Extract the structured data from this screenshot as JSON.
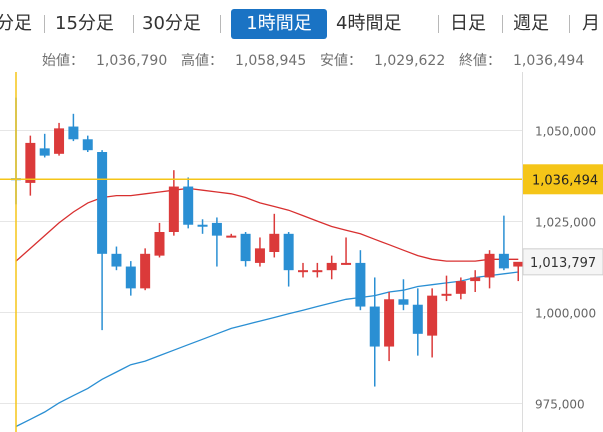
{
  "tabs": [
    {
      "label": "分足",
      "active": false
    },
    {
      "label": "15分足",
      "active": false
    },
    {
      "label": "30分足",
      "active": false
    },
    {
      "label": "1時間足",
      "active": true
    },
    {
      "label": "4時間足",
      "active": false
    },
    {
      "label": "日足",
      "active": false
    },
    {
      "label": "週足",
      "active": false
    },
    {
      "label": "月",
      "active": false
    }
  ],
  "ohlc": {
    "open_label": "始値：",
    "open": "1,036,790",
    "high_label": "高値：",
    "high": "1,058,945",
    "low_label": "安値：",
    "low": "1,029,622",
    "close_label": "終値：",
    "close": "1,036,494"
  },
  "colors": {
    "up": "#db3a3a",
    "down": "#2a8fd3",
    "ma_short": "#d83030",
    "ma_long": "#2a8fd3",
    "crosshair": "#f5c518",
    "tab_active": "#1a73c4",
    "last_price_bg": "#f5f5f5"
  },
  "chart_data": {
    "type": "candlestick",
    "ylim": [
      967000,
      1066000
    ],
    "yticks": [
      {
        "value": 975000,
        "label": "975,000"
      },
      {
        "value": 1000000,
        "label": "1,000,000"
      },
      {
        "value": 1025000,
        "label": "1,025,000"
      },
      {
        "value": 1050000,
        "label": "1,050,000"
      }
    ],
    "crosshair": {
      "value": 1036494,
      "label": "1,036,494",
      "candle_index": 0
    },
    "last_price": {
      "value": 1013797,
      "label": "1,013,797"
    },
    "candles": [
      {
        "o": 1036790,
        "h": 1058945,
        "l": 1029622,
        "c": 1036494
      },
      {
        "o": 1035500,
        "h": 1048500,
        "l": 1032000,
        "c": 1046500
      },
      {
        "o": 1045000,
        "h": 1049000,
        "l": 1042500,
        "c": 1043000
      },
      {
        "o": 1043500,
        "h": 1052000,
        "l": 1043000,
        "c": 1050500
      },
      {
        "o": 1051000,
        "h": 1054500,
        "l": 1047000,
        "c": 1047500
      },
      {
        "o": 1047500,
        "h": 1048500,
        "l": 1044000,
        "c": 1044500
      },
      {
        "o": 1044000,
        "h": 1044500,
        "l": 995000,
        "c": 1016000
      },
      {
        "o": 1016000,
        "h": 1018000,
        "l": 1011500,
        "c": 1012500
      },
      {
        "o": 1012500,
        "h": 1014000,
        "l": 1004500,
        "c": 1006500
      },
      {
        "o": 1006500,
        "h": 1017500,
        "l": 1006000,
        "c": 1016000
      },
      {
        "o": 1015500,
        "h": 1024500,
        "l": 1015000,
        "c": 1022000
      },
      {
        "o": 1022000,
        "h": 1039000,
        "l": 1021000,
        "c": 1034500
      },
      {
        "o": 1034500,
        "h": 1037000,
        "l": 1023000,
        "c": 1024000
      },
      {
        "o": 1024000,
        "h": 1025500,
        "l": 1021500,
        "c": 1023500
      },
      {
        "o": 1024500,
        "h": 1026000,
        "l": 1012500,
        "c": 1021000
      },
      {
        "o": 1021000,
        "h": 1021500,
        "l": 1020500,
        "c": 1021000
      },
      {
        "o": 1021500,
        "h": 1022000,
        "l": 1012500,
        "c": 1014000
      },
      {
        "o": 1013500,
        "h": 1020500,
        "l": 1012500,
        "c": 1017500
      },
      {
        "o": 1016500,
        "h": 1027000,
        "l": 1015000,
        "c": 1021500
      },
      {
        "o": 1021500,
        "h": 1022000,
        "l": 1007000,
        "c": 1011500
      },
      {
        "o": 1011500,
        "h": 1013500,
        "l": 1009500,
        "c": 1011500
      },
      {
        "o": 1011500,
        "h": 1013500,
        "l": 1009500,
        "c": 1011500
      },
      {
        "o": 1011500,
        "h": 1015500,
        "l": 1009000,
        "c": 1013500
      },
      {
        "o": 1013500,
        "h": 1020500,
        "l": 1013000,
        "c": 1013500
      },
      {
        "o": 1013500,
        "h": 1017000,
        "l": 1000500,
        "c": 1001500
      },
      {
        "o": 1001500,
        "h": 1009500,
        "l": 979500,
        "c": 990500
      },
      {
        "o": 990500,
        "h": 1005500,
        "l": 986500,
        "c": 1003500
      },
      {
        "o": 1003500,
        "h": 1009000,
        "l": 1000500,
        "c": 1002000
      },
      {
        "o": 1002000,
        "h": 1006500,
        "l": 988000,
        "c": 994000
      },
      {
        "o": 993500,
        "h": 1006500,
        "l": 987500,
        "c": 1004500
      },
      {
        "o": 1004500,
        "h": 1010000,
        "l": 1003000,
        "c": 1005000
      },
      {
        "o": 1005000,
        "h": 1009500,
        "l": 1003500,
        "c": 1008500
      },
      {
        "o": 1008500,
        "h": 1011500,
        "l": 1005500,
        "c": 1009500
      },
      {
        "o": 1009500,
        "h": 1017000,
        "l": 1006500,
        "c": 1016000
      },
      {
        "o": 1016000,
        "h": 1026500,
        "l": 1011500,
        "c": 1012000
      },
      {
        "o": 1012500,
        "h": 1013000,
        "l": 1008500,
        "c": 1013797
      }
    ],
    "ma_short": [
      1014000,
      1017500,
      1021000,
      1024500,
      1027500,
      1030000,
      1031500,
      1032000,
      1032000,
      1032500,
      1033000,
      1033500,
      1034000,
      1033500,
      1033000,
      1032500,
      1031500,
      1030000,
      1029000,
      1028000,
      1026500,
      1025000,
      1023500,
      1022500,
      1021500,
      1020000,
      1018500,
      1017000,
      1015500,
      1014500,
      1014000,
      1014000,
      1014000,
      1014500,
      1014500,
      1014500
    ],
    "ma_long": [
      968500,
      970500,
      972500,
      975000,
      977000,
      979000,
      981500,
      983500,
      985500,
      986500,
      988000,
      989500,
      991000,
      992500,
      994000,
      995500,
      996500,
      997500,
      998500,
      999500,
      1000500,
      1001500,
      1002500,
      1003500,
      1004000,
      1004500,
      1005500,
      1006000,
      1007000,
      1007500,
      1008000,
      1008500,
      1009500,
      1010000,
      1010500,
      1011000
    ]
  }
}
